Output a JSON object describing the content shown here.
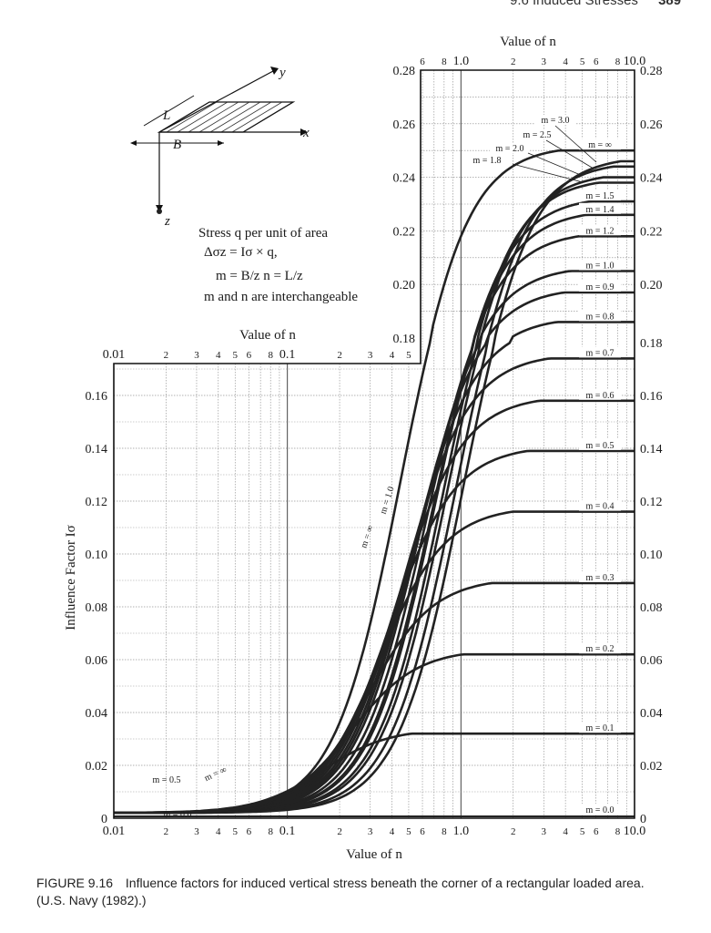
{
  "page_header": {
    "section": "9.6   Induced Stresses",
    "page_number": "389"
  },
  "caption": {
    "label": "FIGURE 9.16",
    "text": "Influence factors for induced vertical stress beneath the corner of a rectangular loaded area. (U.S. Navy (1982).)"
  },
  "legend_text": {
    "line1": "Stress q per unit of area",
    "line2": "Δσz = Iσ × q,",
    "line3": "m = B/z   n = L/z",
    "line4": "m and n are interchangeable"
  },
  "diagram_labels": {
    "x": "x",
    "y": "y",
    "z": "z",
    "L": "L",
    "B": "B"
  },
  "chart_data": {
    "type": "line",
    "xscale": "log",
    "xlabel": "Value of n",
    "ylabel": "Influence Factor Iσ",
    "upper_xlabel": "Value of n",
    "inset_xlabel": "Value of n",
    "xlim": [
      0.01,
      10.0
    ],
    "ylim": [
      0,
      0.16
    ],
    "upper_xlim": [
      0.5,
      10.0
    ],
    "upper_ylim": [
      0.18,
      0.28
    ],
    "grid": true,
    "x_ticks": [
      "0.01",
      "2",
      "3",
      "4",
      "5",
      "6",
      "8",
      "0.1",
      "2",
      "3",
      "4",
      "5",
      "6",
      "8",
      "1.0",
      "2",
      "3",
      "4",
      "5",
      "6",
      "8",
      "10.0"
    ],
    "upper_x_ticks": [
      "6",
      "8",
      "1.0",
      "2",
      "3",
      "4",
      "5",
      "6",
      "8",
      "10.0"
    ],
    "y_ticks_main": [
      "0",
      "0.02",
      "0.04",
      "0.06",
      "0.08",
      "0.10",
      "0.12",
      "0.14",
      "0.16"
    ],
    "y_ticks_upper": [
      "0.18",
      "0.20",
      "0.22",
      "0.24",
      "0.26",
      "0.28"
    ],
    "y_ticks_right": [
      "0",
      "0.02",
      "0.04",
      "0.06",
      "0.08",
      "0.10",
      "0.12",
      "0.14",
      "0.16",
      "0.18",
      "0.20",
      "0.22",
      "0.24",
      "0.26",
      "0.28"
    ],
    "series_labels_right": [
      {
        "label": "m = 0.0",
        "y": 0.001
      },
      {
        "label": "m = 0.1",
        "y": 0.032
      },
      {
        "label": "m = 0.2",
        "y": 0.062
      },
      {
        "label": "m = 0.3",
        "y": 0.089
      },
      {
        "label": "m = 0.4",
        "y": 0.116
      },
      {
        "label": "m = 0.5",
        "y": 0.139
      },
      {
        "label": "m = 0.6",
        "y": 0.158
      },
      {
        "label": "m = 0.7",
        "y": 0.174
      },
      {
        "label": "m = 0.8",
        "y": 0.186
      },
      {
        "label": "m = 0.9",
        "y": 0.197
      },
      {
        "label": "m = 1.0",
        "y": 0.205
      },
      {
        "label": "m = 1.2",
        "y": 0.218
      },
      {
        "label": "m = 1.4",
        "y": 0.226
      },
      {
        "label": "m = 1.5",
        "y": 0.231
      },
      {
        "label": "m = ∞",
        "y": 0.25
      }
    ],
    "upper_callouts": [
      {
        "label": "m = 3.0"
      },
      {
        "label": "m = 2.5"
      },
      {
        "label": "m = 2.0"
      },
      {
        "label": "m = 1.8"
      }
    ],
    "curve_labels": [
      {
        "label": "m = 0.0"
      },
      {
        "label": "m = 0.5"
      },
      {
        "label": "m = ∞"
      },
      {
        "label": "m = ∞"
      },
      {
        "label": "m = 1.0"
      },
      {
        "label": "m = 0.5"
      }
    ],
    "series": [
      {
        "name": "m = 0.1",
        "m": 0.1,
        "final": 0.032
      },
      {
        "name": "m = 0.2",
        "m": 0.2,
        "final": 0.062
      },
      {
        "name": "m = 0.3",
        "m": 0.3,
        "final": 0.089
      },
      {
        "name": "m = 0.4",
        "m": 0.4,
        "final": 0.116
      },
      {
        "name": "m = 0.5",
        "m": 0.5,
        "final": 0.139
      },
      {
        "name": "m = 0.6",
        "m": 0.6,
        "final": 0.158
      },
      {
        "name": "m = 0.7",
        "m": 0.7,
        "final": 0.174
      },
      {
        "name": "m = 0.8",
        "m": 0.8,
        "final": 0.186
      },
      {
        "name": "m = 0.9",
        "m": 0.9,
        "final": 0.197
      },
      {
        "name": "m = 1.0",
        "m": 1.0,
        "final": 0.205
      },
      {
        "name": "m = 1.2",
        "m": 1.2,
        "final": 0.218
      },
      {
        "name": "m = 1.4",
        "m": 1.4,
        "final": 0.226
      },
      {
        "name": "m = 1.5",
        "m": 1.5,
        "final": 0.231
      },
      {
        "name": "m = 1.8",
        "m": 1.8,
        "final": 0.238
      },
      {
        "name": "m = 2.0",
        "m": 2.0,
        "final": 0.24
      },
      {
        "name": "m = 2.5",
        "m": 2.5,
        "final": 0.244
      },
      {
        "name": "m = 3.0",
        "m": 3.0,
        "final": 0.246
      },
      {
        "name": "m = ∞",
        "m": 1000,
        "final": 0.25
      }
    ]
  }
}
